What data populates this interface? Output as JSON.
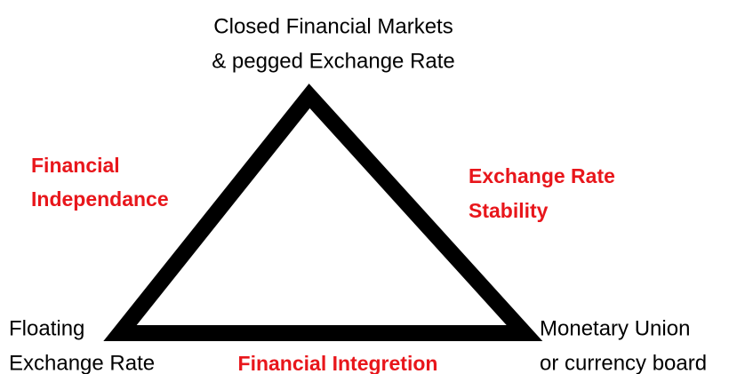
{
  "vertices": [
    {
      "lines": [
        "Closed Financial Markets",
        "& pegged Exchange Rate"
      ]
    },
    {
      "lines": [
        "Floating",
        "Exchange Rate"
      ]
    },
    {
      "lines": [
        "Monetary Union",
        "or currency board"
      ]
    }
  ],
  "sides": [
    {
      "lines": [
        "Financial",
        "Independance"
      ]
    },
    {
      "lines": [
        "Exchange Rate",
        "Stability"
      ]
    },
    {
      "lines": [
        "Financial Integretion"
      ]
    }
  ]
}
